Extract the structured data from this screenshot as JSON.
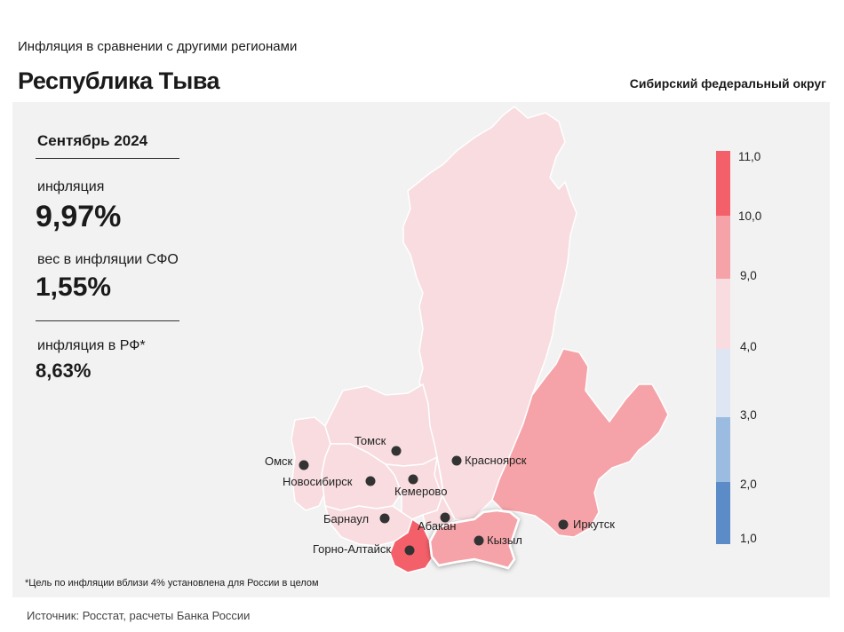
{
  "header": {
    "subtitle": "Инфляция  в сравнении  с другими  регионами",
    "title": "Республика Тыва",
    "district": "Сибирский федеральный округ"
  },
  "stats": {
    "period": "Сентябрь 2024",
    "inflation_label": "инфляция",
    "inflation_value": "9,97%",
    "weight_label": "вес в инфляции  СФО",
    "weight_value": "1,55%",
    "rf_label": "инфляция  в РФ*",
    "rf_value": "8,63%"
  },
  "footnote": "*Цель по инфляции вблизи 4% установлена для России в целом",
  "source": "Источник: Росстат, расчеты Банка России",
  "cities": {
    "omsk": "Омск",
    "tomsk": "Томск",
    "novosibirsk": "Новосибирск",
    "kemerovo": "Кемерово",
    "krasnoyarsk": "Красноярск",
    "barnaul": "Барнаул",
    "abakan": "Абакан",
    "gorno_altaysk": "Горно-Алтайск",
    "kyzyl": "Кызыл",
    "irkutsk": "Иркутск"
  },
  "legend": {
    "labels": [
      "11,0",
      "10,0",
      "9,0",
      "4,0",
      "3,0",
      "2,0",
      "1,0"
    ],
    "colors": [
      "#f4606a",
      "#f5a3a8",
      "#f8dce0",
      "#dde6f2",
      "#9bbbe0",
      "#5b8cc8"
    ]
  },
  "colors": {
    "light_pink": "#f8dce0",
    "mid_pink": "#f5a3a8",
    "red": "#f4606a",
    "highlight": "#f5a3a8"
  }
}
